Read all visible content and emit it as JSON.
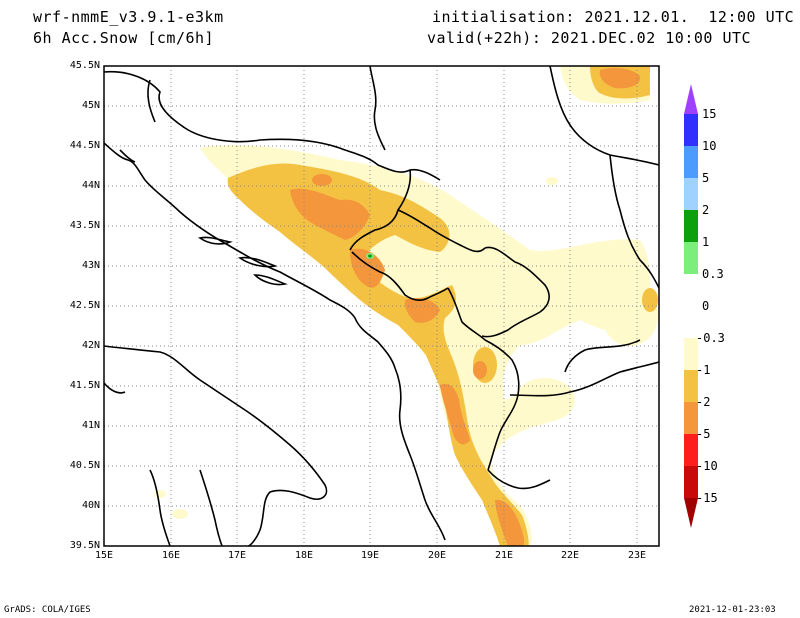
{
  "header": {
    "model": "wrf-nmmE_v3.9.1-e3km",
    "variable": "6h Acc.Snow [cm/6h]",
    "init": "initialisation: 2021.12.01.  12:00 UTC",
    "valid": "valid(+22h): 2021.DEC.02 10:00 UTC"
  },
  "map": {
    "lat_labels": [
      "45.5N",
      "45N",
      "44.5N",
      "44N",
      "43.5N",
      "43N",
      "42.5N",
      "42N",
      "41.5N",
      "41N",
      "40.5N",
      "40N",
      "39.5N"
    ],
    "lon_labels": [
      "15E",
      "16E",
      "17E",
      "18E",
      "19E",
      "20E",
      "21E",
      "22E",
      "23E"
    ],
    "lat_range": [
      39.5,
      45.5
    ],
    "lon_range": [
      15,
      23.3
    ],
    "grid": "dotted"
  },
  "colorbar": {
    "levels": [
      "15",
      "10",
      "5",
      "2",
      "1",
      "0.3",
      "0",
      "-0.3",
      "-1",
      "-2",
      "-5",
      "-10",
      "-15"
    ],
    "colors": {
      "top_tri": "#a040ff",
      "c15": "#3030ff",
      "c10": "#4c9bff",
      "c5": "#a0d2ff",
      "c2": "#0ca00c",
      "c1": "#7cee7c",
      "c03": "#ffffff",
      "cm03": "#fffacc",
      "cm1": "#f4c242",
      "cm2": "#f4963c",
      "cm5": "#fe1e1e",
      "cm10": "#c80a0a",
      "bot_tri": "#a00000"
    }
  },
  "footer": {
    "left": "GrADS: COLA/IGES",
    "right": "2021-12-01-23:03"
  }
}
